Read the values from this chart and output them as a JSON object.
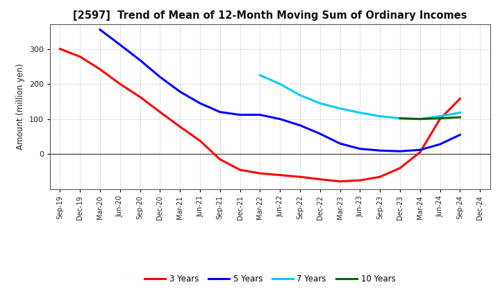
{
  "title": "[2597]  Trend of Mean of 12-Month Moving Sum of Ordinary Incomes",
  "ylabel": "Amount (million yen)",
  "background_color": "#ffffff",
  "plot_bg_color": "#ffffff",
  "grid_color": "#888888",
  "x_labels": [
    "Sep-19",
    "Dec-19",
    "Mar-20",
    "Jun-20",
    "Sep-20",
    "Dec-20",
    "Mar-21",
    "Jun-21",
    "Sep-21",
    "Dec-21",
    "Mar-22",
    "Jun-22",
    "Sep-22",
    "Dec-22",
    "Mar-23",
    "Jun-23",
    "Sep-23",
    "Dec-23",
    "Mar-24",
    "Jun-24",
    "Sep-24",
    "Dec-24"
  ],
  "series_3y": {
    "label": "3 Years",
    "color": "#ff0000",
    "data_x": [
      0,
      1,
      2,
      3,
      4,
      5,
      6,
      7,
      8,
      9,
      10,
      11,
      12,
      13,
      14,
      15,
      16,
      17,
      18,
      19,
      20
    ],
    "data_y": [
      300,
      278,
      242,
      200,
      163,
      120,
      78,
      38,
      -15,
      -45,
      -55,
      -60,
      -65,
      -72,
      -78,
      -75,
      -65,
      -40,
      5,
      100,
      158
    ]
  },
  "series_5y": {
    "label": "5 Years",
    "color": "#0000ff",
    "data_x": [
      2,
      3,
      4,
      5,
      6,
      7,
      8,
      9,
      10,
      11,
      12,
      13,
      14,
      15,
      16,
      17,
      18,
      19,
      20
    ],
    "data_y": [
      355,
      312,
      268,
      220,
      178,
      145,
      120,
      112,
      112,
      100,
      82,
      58,
      30,
      15,
      10,
      8,
      12,
      28,
      55
    ]
  },
  "series_7y": {
    "label": "7 Years",
    "color": "#00ccff",
    "data_x": [
      10,
      11,
      12,
      13,
      14,
      15,
      16,
      17,
      18,
      19,
      20
    ],
    "data_y": [
      225,
      200,
      168,
      145,
      130,
      118,
      108,
      102,
      100,
      108,
      118
    ]
  },
  "series_10y": {
    "label": "10 Years",
    "color": "#006600",
    "data_x": [
      17,
      18,
      19,
      20
    ],
    "data_y": [
      102,
      100,
      102,
      105
    ]
  },
  "ylim": [
    -100,
    370
  ],
  "ytick_positions": [
    0,
    100,
    200,
    300
  ],
  "ytick_labels": [
    "0",
    "100",
    "200",
    "300"
  ],
  "legend_colors": [
    "#ff0000",
    "#0000ff",
    "#00ccff",
    "#006600"
  ],
  "legend_labels": [
    "3 Years",
    "5 Years",
    "7 Years",
    "10 Years"
  ]
}
